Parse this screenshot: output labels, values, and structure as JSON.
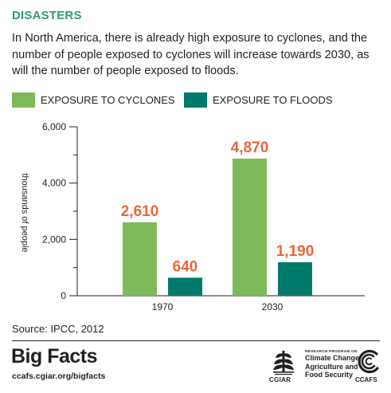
{
  "header": {
    "title": "DISASTERS",
    "description": "In North America, there is already high exposure to cyclones, and the number of people exposed to cyclones will increase towards 2030, as will the number of people exposed to floods."
  },
  "colors": {
    "heading": "#2f9c6b",
    "cyclones": "#7fba5a",
    "floods": "#007a6a",
    "value_labels": "#e8673a"
  },
  "chart_data": {
    "type": "bar",
    "categories": [
      "1970",
      "2030"
    ],
    "series": [
      {
        "name": "EXPOSURE TO CYCLONES",
        "values": [
          2610,
          4870
        ],
        "labels": [
          "2,610",
          "4,870"
        ]
      },
      {
        "name": "EXPOSURE TO FLOODS",
        "values": [
          640,
          1190
        ],
        "labels": [
          "640",
          "1,190"
        ]
      }
    ],
    "ylabel": "thousands of people",
    "yticks": [
      "0",
      "2,000",
      "4,000",
      "6,000"
    ],
    "ytick_values": [
      0,
      2000,
      4000,
      6000
    ],
    "ylim": [
      0,
      6000
    ],
    "legend_position": "top-left",
    "grid": false
  },
  "footer": {
    "source": "Source: IPCC, 2012",
    "brand": "Big Facts",
    "url": "ccafs.cgiar.org/bigfacts",
    "cgiar": "CGIAR",
    "research_program": "RESEARCH PROGRAM ON",
    "program_lines": [
      "Climate Change,",
      "Agriculture and",
      "Food Security"
    ],
    "ccafs": "CCAFS"
  }
}
